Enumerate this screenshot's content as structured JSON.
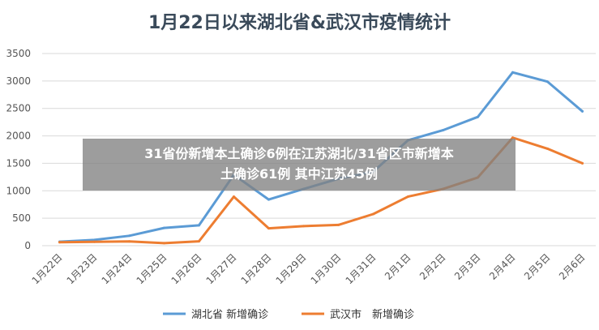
{
  "chart_data": {
    "type": "line",
    "title": "1月22日以来湖北省&武汉市疫情统计",
    "categories": [
      "1月22日",
      "1月23日",
      "1月24日",
      "1月25日",
      "1月26日",
      "1月27日",
      "1月28日",
      "1月29日",
      "1月30日",
      "1月31日",
      "2月1日",
      "2月2日",
      "2月3日",
      "2月4日",
      "2月5日",
      "2月6日"
    ],
    "ylim": [
      0,
      3500
    ],
    "yticks": [
      0,
      500,
      1000,
      1500,
      2000,
      2500,
      3000,
      3500
    ],
    "grid": true,
    "legend_position": "bottom",
    "series": [
      {
        "name": "湖北省 新增确诊",
        "color": "#5b9bd5",
        "values": [
          72,
          105,
          180,
          323,
          371,
          1291,
          840,
          1032,
          1220,
          1347,
          1921,
          2103,
          2345,
          3156,
          2987,
          2447
        ]
      },
      {
        "name": "武汉市　新增确诊",
        "color": "#ed7d31",
        "values": [
          62,
          70,
          77,
          46,
          80,
          892,
          315,
          356,
          378,
          576,
          894,
          1033,
          1242,
          1967,
          1766,
          1501
        ]
      }
    ]
  },
  "overlay": {
    "line1": "31省份新增本土确诊6例在江苏湖北/31省区市新增本",
    "line2": "土确诊61例 其中江苏45例"
  }
}
